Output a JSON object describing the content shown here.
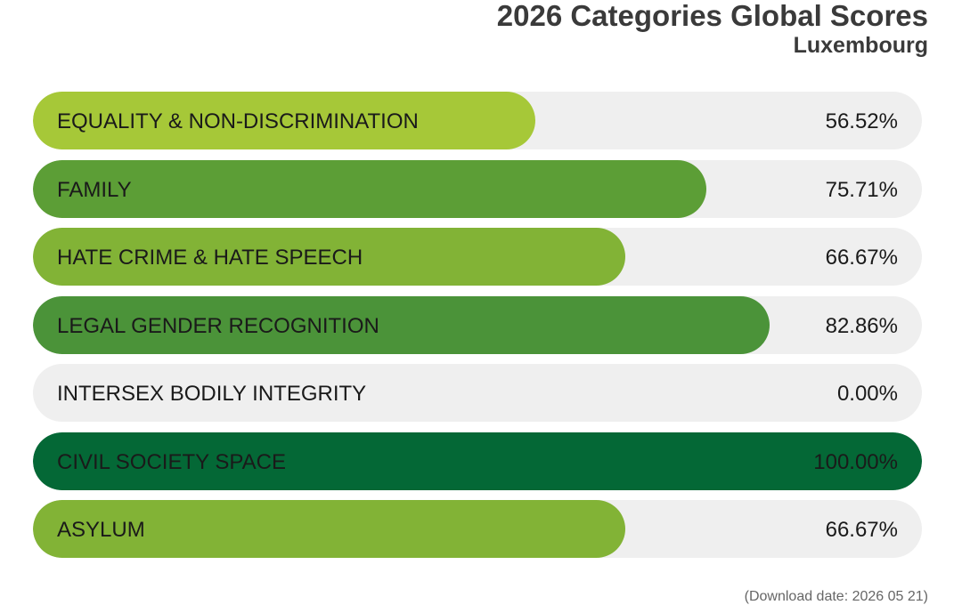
{
  "header": {
    "title": "2026 Categories Global Scores",
    "subtitle": "Luxembourg"
  },
  "chart_data": {
    "type": "bar",
    "orientation": "horizontal",
    "title": "2026 Categories Global Scores",
    "subtitle": "Luxembourg",
    "xlim": [
      0,
      100
    ],
    "grid": false,
    "categories": [
      "EQUALITY & NON-DISCRIMINATION",
      "FAMILY",
      "HATE CRIME & HATE SPEECH",
      "LEGAL GENDER RECOGNITION",
      "INTERSEX BODILY INTEGRITY",
      "CIVIL SOCIETY SPACE",
      "ASYLUM"
    ],
    "values": [
      56.52,
      75.71,
      66.67,
      82.86,
      0.0,
      100.0,
      66.67
    ],
    "value_labels": [
      "56.52%",
      "75.71%",
      "66.67%",
      "82.86%",
      "0.00%",
      "100.00%",
      "66.67%"
    ],
    "colors": [
      "#a6c838",
      "#5c9e36",
      "#82b336",
      "#4b9339",
      "#efefef",
      "#046836",
      "#82b336"
    ]
  },
  "footer": {
    "download_date": "(Download date: 2026 05 21)"
  }
}
